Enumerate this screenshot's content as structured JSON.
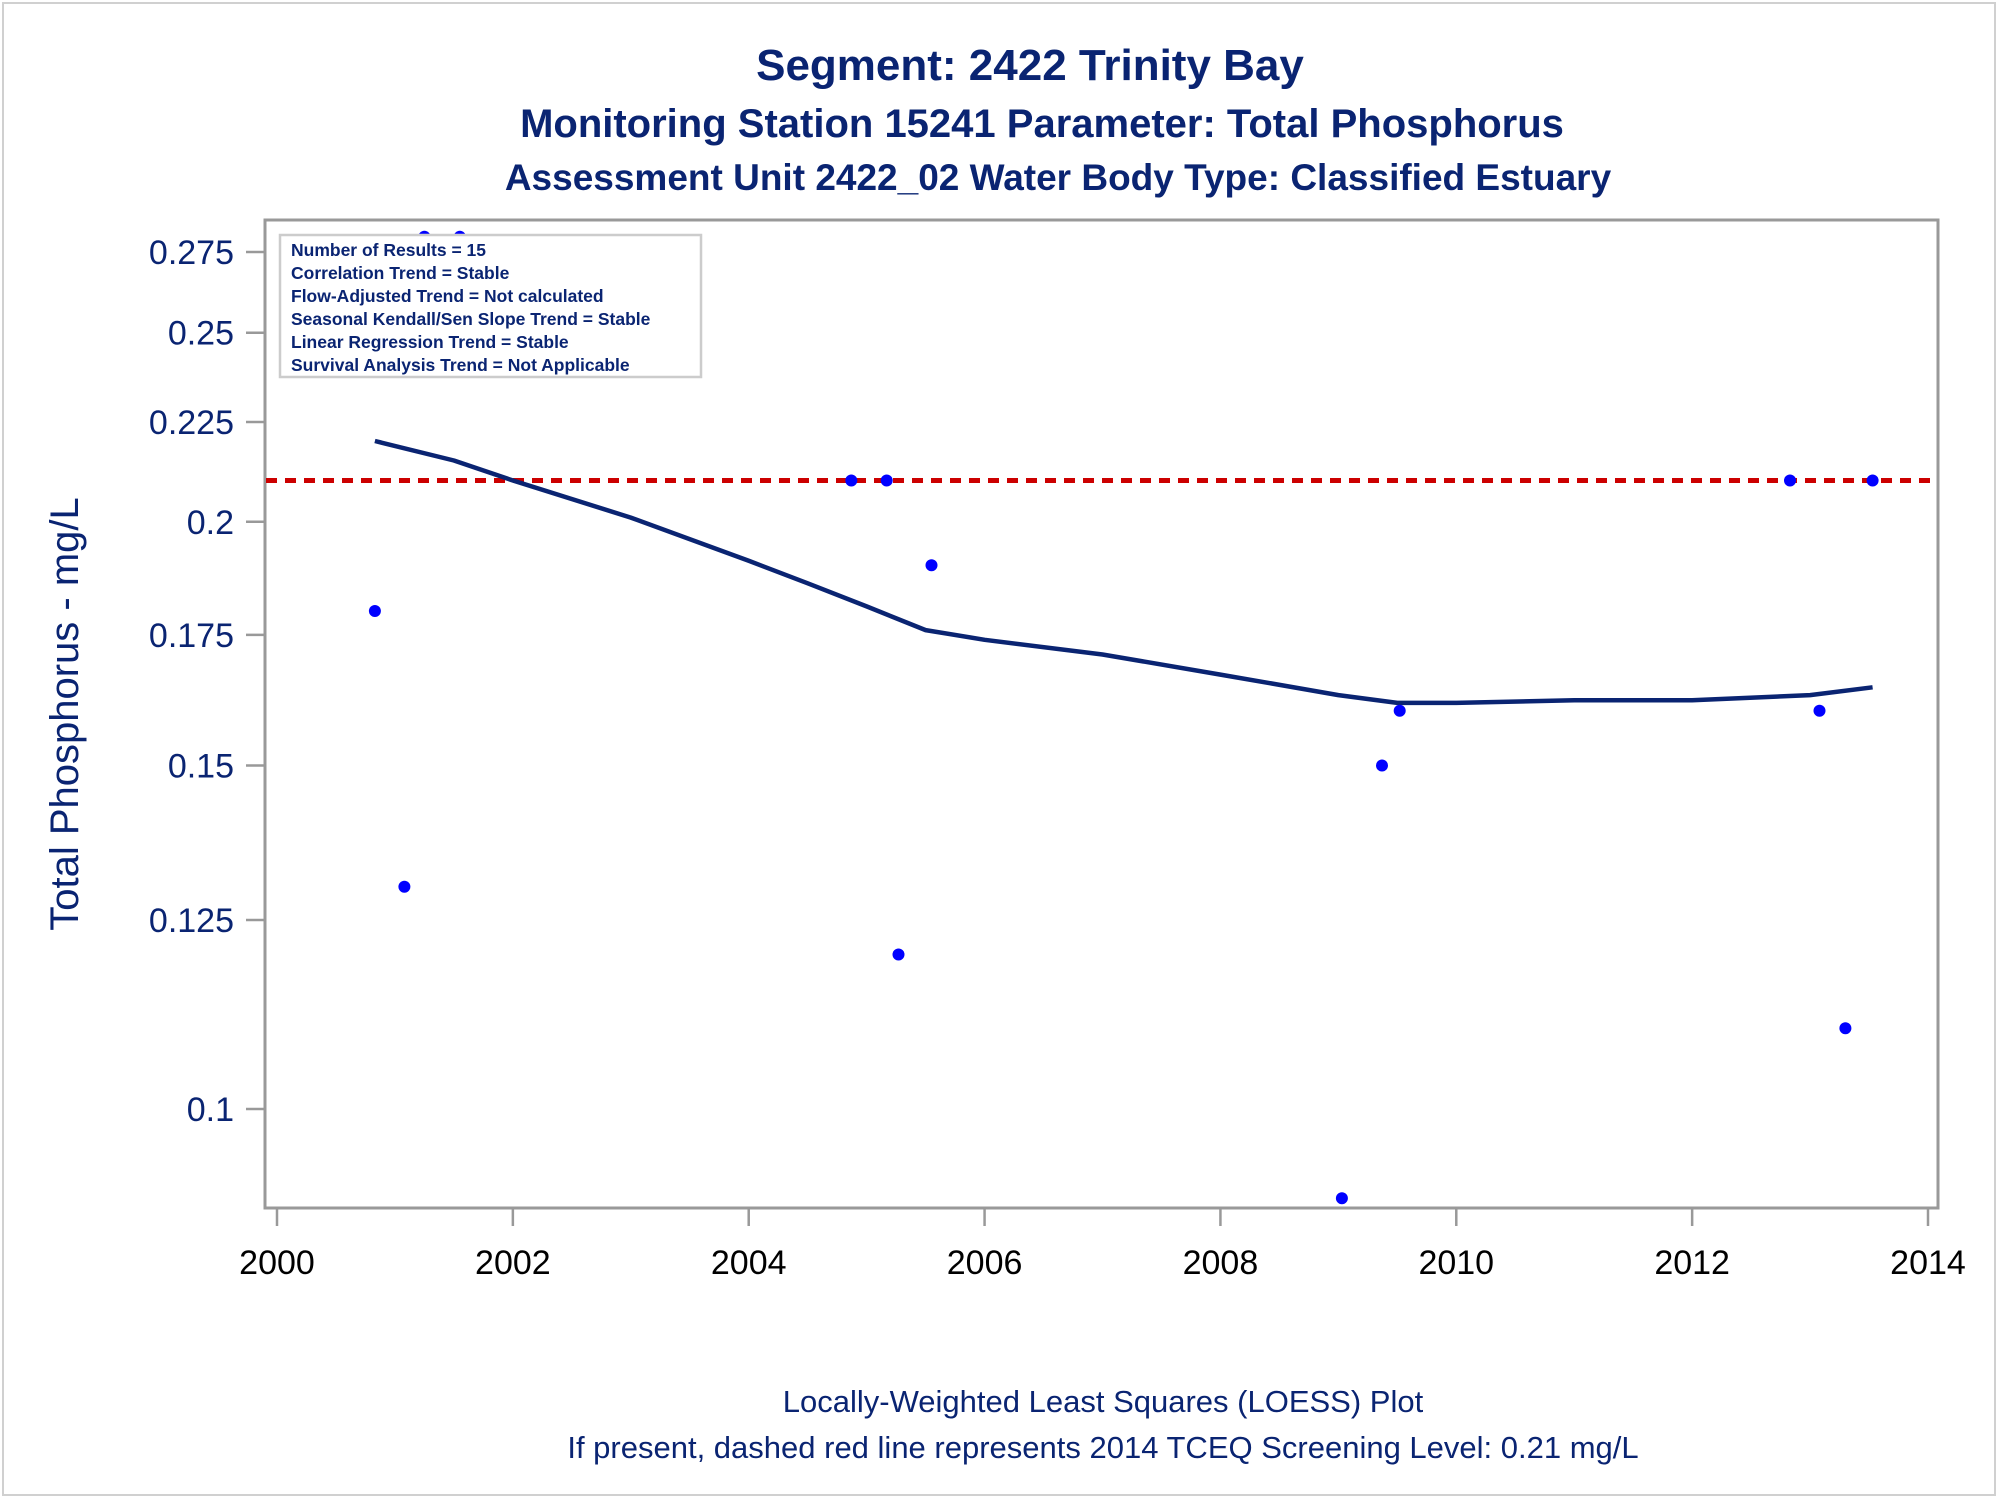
{
  "chart_data": {
    "type": "scatter",
    "title": "Segment: 2422  Trinity Bay",
    "subtitle": "Monitoring Station 15241 Parameter: Total Phosphorus",
    "subtitle2": "Assessment Unit 2422_02   Water Body Type: Classified Estuary",
    "ylabel": "Total Phosphorus - mg/L",
    "xlabel": "",
    "footnote1": "Locally-Weighted Least Squares (LOESS) Plot",
    "footnote2": "If present, dashed red line represents 2014 TCEQ Screening Level: 0.21 mg/L",
    "y_scale": "log",
    "xlim": [
      2000,
      2014
    ],
    "ylim": [
      0.088,
      0.28
    ],
    "x_ticks": [
      "2000",
      "2002",
      "2004",
      "2006",
      "2008",
      "2010",
      "2012",
      "2014"
    ],
    "y_ticks": [
      {
        "value": 0.1,
        "label": "0.1"
      },
      {
        "value": 0.125,
        "label": "0.125"
      },
      {
        "value": 0.15,
        "label": "0.15"
      },
      {
        "value": 0.175,
        "label": "0.175"
      },
      {
        "value": 0.2,
        "label": "0.2"
      },
      {
        "value": 0.225,
        "label": "0.225"
      },
      {
        "value": 0.25,
        "label": "0.25"
      },
      {
        "value": 0.275,
        "label": "0.275"
      }
    ],
    "grid": false,
    "legend_position": "top-left",
    "stats": [
      "Number of Results = 15",
      "Correlation Trend = Stable",
      "Flow-Adjusted Trend = Not calculated",
      "Seasonal Kendall/Sen Slope Trend = Stable",
      "Linear Regression Trend = Stable",
      "Survival Analysis Trend = Not Applicable"
    ],
    "screening_level": 0.21,
    "series": [
      {
        "type": "scatter",
        "points": [
          [
            2000.83,
            0.18
          ],
          [
            2001.08,
            0.13
          ],
          [
            2001.25,
            0.28
          ],
          [
            2001.55,
            0.28
          ],
          [
            2004.87,
            0.21
          ],
          [
            2005.17,
            0.21
          ],
          [
            2005.27,
            0.12
          ],
          [
            2005.55,
            0.19
          ],
          [
            2009.03,
            0.09
          ],
          [
            2009.37,
            0.15
          ],
          [
            2009.52,
            0.16
          ],
          [
            2012.83,
            0.21
          ],
          [
            2013.08,
            0.16
          ],
          [
            2013.3,
            0.11
          ],
          [
            2013.53,
            0.21
          ]
        ]
      },
      {
        "type": "line",
        "points": [
          [
            2000.83,
            0.22
          ],
          [
            2001.5,
            0.215
          ],
          [
            2002.0,
            0.21
          ],
          [
            2003.0,
            0.201
          ],
          [
            2004.0,
            0.191
          ],
          [
            2004.5,
            0.186
          ],
          [
            2005.0,
            0.181
          ],
          [
            2005.5,
            0.176
          ],
          [
            2006.0,
            0.174
          ],
          [
            2007.0,
            0.171
          ],
          [
            2008.0,
            0.167
          ],
          [
            2009.0,
            0.163
          ],
          [
            2009.5,
            0.1615
          ],
          [
            2010.0,
            0.1615
          ],
          [
            2011.0,
            0.162
          ],
          [
            2012.0,
            0.162
          ],
          [
            2013.0,
            0.163
          ],
          [
            2013.53,
            0.1645
          ]
        ]
      }
    ],
    "colors": {
      "text": "#0a2472",
      "points": "#0000ff",
      "loess": "#0a2472",
      "screening": "#cc0000",
      "axis": "#999999"
    }
  }
}
